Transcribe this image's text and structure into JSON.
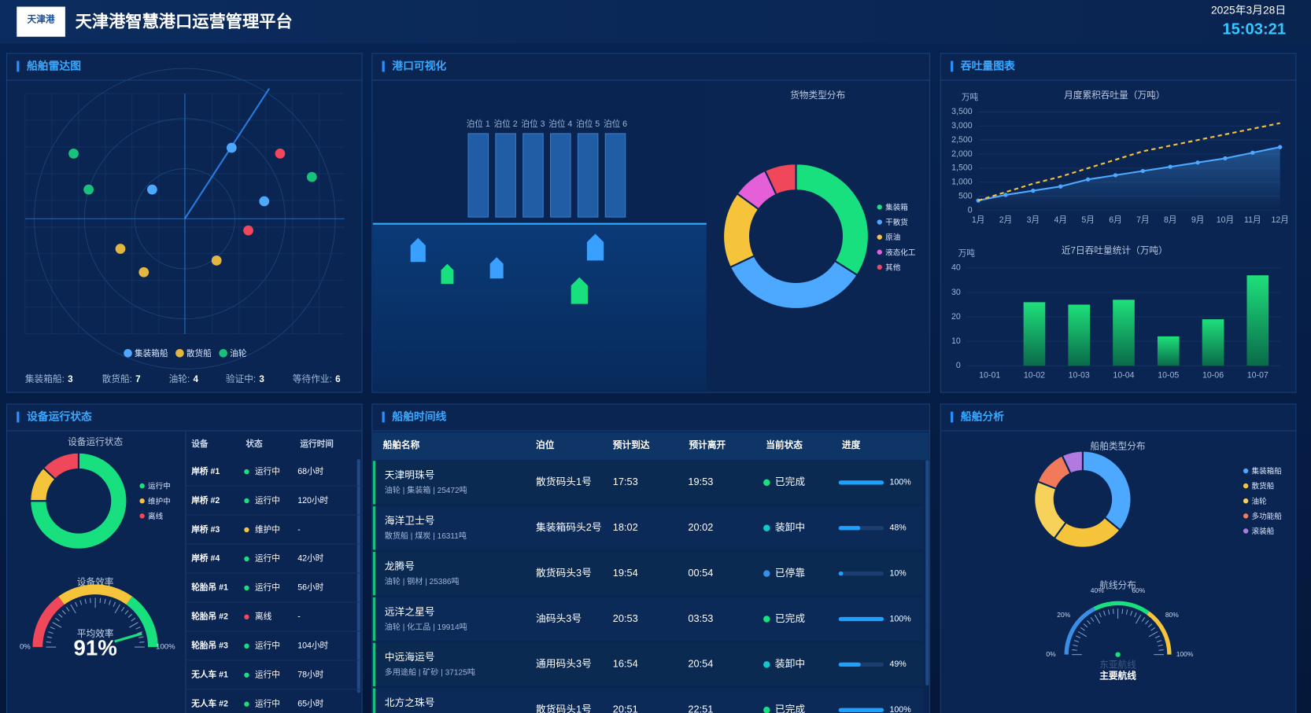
{
  "header": {
    "logo_text": "天津港",
    "title": "天津港智慧港口运营管理平台",
    "date": "2025年3月28日",
    "time": "15:03:21"
  },
  "radar": {
    "title": "船舶雷达图",
    "legend": [
      {
        "name": "集装箱船",
        "color": "#4da8ff"
      },
      {
        "name": "散货船",
        "color": "#e2b640"
      },
      {
        "name": "油轮",
        "color": "#19c27a"
      }
    ],
    "stats": [
      {
        "label": "集装箱船:",
        "value": 3
      },
      {
        "label": "散货船:",
        "value": 7
      },
      {
        "label": "油轮:",
        "value": 4
      },
      {
        "label": "验证中:",
        "value": 3
      },
      {
        "label": "等待作业:",
        "value": 6
      }
    ]
  },
  "port": {
    "title": "港口可视化",
    "berths": [
      "泊位 1",
      "泊位 2",
      "泊位 3",
      "泊位 4",
      "泊位 5",
      "泊位 6"
    ],
    "cargo_chart": {
      "type": "donut",
      "title": "货物类型分布",
      "categories": [
        "集装箱",
        "干散货",
        "原油",
        "液态化工",
        "其他"
      ],
      "values": [
        34,
        34,
        17,
        8,
        7
      ],
      "colors": [
        "#19e07f",
        "#4da8ff",
        "#f5c43a",
        "#e45fd8",
        "#f0475a"
      ]
    }
  },
  "throughput": {
    "title": "吞吐量图表",
    "line_chart": {
      "type": "line",
      "title": "月度累积吞吐量（万吨）",
      "y_unit": "万吨",
      "categories": [
        "1月",
        "2月",
        "3月",
        "4月",
        "5月",
        "6月",
        "7月",
        "8月",
        "9月",
        "10月",
        "11月",
        "12月"
      ],
      "series": [
        {
          "color": "#4da8ff",
          "style": "solid",
          "values": [
            350,
            550,
            700,
            850,
            1100,
            1250,
            1400,
            1550,
            1700,
            1850,
            2050,
            2250
          ]
        },
        {
          "color": "#f5c43a",
          "style": "dashed",
          "values": [
            350,
            650,
            950,
            1200,
            1500,
            1800,
            2100,
            2300,
            2500,
            2700,
            2900,
            3100
          ]
        }
      ],
      "ylim": [
        0,
        3500
      ],
      "yticks": [
        0,
        500,
        {
          "value": 1000,
          "label": "1,000"
        },
        {
          "value": 1500,
          "label": "1,500"
        },
        {
          "value": 2000,
          "label": "2,000"
        },
        {
          "value": 2500,
          "label": "2,500"
        },
        {
          "value": 3000,
          "label": "3,000"
        },
        {
          "value": 3500,
          "label": "3,500"
        }
      ],
      "grid": true
    },
    "bar_chart": {
      "type": "bar",
      "title": "近7日吞吐量统计（万吨）",
      "y_unit": "万吨",
      "categories": [
        "10-01",
        "10-02",
        "10-03",
        "10-04",
        "10-05",
        "10-06",
        "10-07"
      ],
      "values": [
        0,
        26,
        25,
        27,
        12,
        19,
        37
      ],
      "color": "#1ee07a",
      "ylim": [
        0,
        40
      ],
      "yticks": [
        0,
        10,
        20,
        30,
        40
      ],
      "grid": true
    }
  },
  "equipment": {
    "title": "设备运行状态",
    "status_chart": {
      "type": "donut",
      "title": "设备运行状态",
      "categories": [
        "运行中",
        "维护中",
        "离线"
      ],
      "values": [
        75,
        12,
        13
      ],
      "colors": [
        "#19e07f",
        "#f5c43a",
        "#f0475a"
      ]
    },
    "efficiency_gauge": {
      "type": "gauge",
      "title": "设备效率",
      "label": "平均效率",
      "value": 91,
      "value_label": "91%",
      "ylim": [
        0,
        100
      ],
      "yticks": [
        {
          "value": 0,
          "label": "0%"
        },
        {
          "value": 100,
          "label": "100%"
        }
      ]
    },
    "table": {
      "headers": [
        "设备",
        "状态",
        "运行时间"
      ],
      "rows": [
        [
          "岸桥 #1",
          "运行中",
          "68小时"
        ],
        [
          "岸桥 #2",
          "运行中",
          "120小时"
        ],
        [
          "岸桥 #3",
          "维护中",
          "-"
        ],
        [
          "岸桥 #4",
          "运行中",
          "42小时"
        ],
        [
          "轮胎吊 #1",
          "运行中",
          "56小时"
        ],
        [
          "轮胎吊 #2",
          "离线",
          "-"
        ],
        [
          "轮胎吊 #3",
          "运行中",
          "104小时"
        ],
        [
          "无人车 #1",
          "运行中",
          "78小时"
        ],
        [
          "无人车 #2",
          "运行中",
          "65小时"
        ]
      ]
    }
  },
  "timeline": {
    "title": "船舶时间线",
    "headers": [
      "船舶名称",
      "泊位",
      "预计到达",
      "预计离开",
      "当前状态",
      "进度"
    ],
    "progress_range": [
      0,
      100
    ],
    "rows": [
      {
        "name": "天津明珠号",
        "detail": "油轮 | 集装箱 | 25472吨",
        "berth": "散货码头1号",
        "arrive": "17:53",
        "depart": "19:53",
        "status": "已完成",
        "status_color": "#19e07f",
        "progress": {
          "value": 100,
          "label": "100%"
        }
      },
      {
        "name": "海洋卫士号",
        "detail": "散货船 | 煤炭 | 16311吨",
        "berth": "集装箱码头2号",
        "arrive": "18:02",
        "depart": "20:02",
        "status": "装卸中",
        "status_color": "#14c8c8",
        "progress": {
          "value": 48,
          "label": "48%"
        }
      },
      {
        "name": "龙腾号",
        "detail": "油轮 | 钢材 | 25386吨",
        "berth": "散货码头3号",
        "arrive": "19:54",
        "depart": "00:54",
        "status": "已停靠",
        "status_color": "#3a8ee6",
        "progress": {
          "value": 10,
          "label": "10%"
        }
      },
      {
        "name": "远洋之星号",
        "detail": "油轮 | 化工品 | 19914吨",
        "berth": "油码头3号",
        "arrive": "20:53",
        "depart": "03:53",
        "status": "已完成",
        "status_color": "#19e07f",
        "progress": {
          "value": 100,
          "label": "100%"
        }
      },
      {
        "name": "中远海运号",
        "detail": "多用途船 | 矿砂 | 37125吨",
        "berth": "通用码头3号",
        "arrive": "16:54",
        "depart": "20:54",
        "status": "装卸中",
        "status_color": "#14c8c8",
        "progress": {
          "value": 49,
          "label": "49%"
        }
      },
      {
        "name": "北方之珠号",
        "berth": "散货码头1号",
        "arrive": "20:51",
        "depart": "22:51",
        "status": "已完成",
        "status_color": "#19e07f",
        "progress": {
          "value": 100,
          "label": "100%"
        }
      }
    ]
  },
  "ship_analysis": {
    "title": "船舶分析",
    "type_chart": {
      "type": "donut",
      "title": "船舶类型分布",
      "categories": [
        "集装箱船",
        "散货船",
        "油轮",
        "多功能船",
        "滚装船"
      ],
      "values": [
        36,
        24,
        21,
        12,
        7
      ],
      "colors": [
        "#4da8ff",
        "#f5c43a",
        "#f7d25a",
        "#f07a5a",
        "#b07ae0"
      ]
    },
    "route_gauge": {
      "type": "gauge",
      "title": "航线分布",
      "route": "东亚航线",
      "label": "主要航线",
      "ylim": [
        0,
        100
      ],
      "yticks": [
        {
          "value": 0,
          "label": "0%"
        },
        {
          "value": 20,
          "label": "20%"
        },
        {
          "value": 40,
          "label": "40%"
        },
        {
          "value": 60,
          "label": "60%"
        },
        {
          "value": 80,
          "label": "80%"
        },
        {
          "value": 100,
          "label": "100%"
        }
      ]
    }
  }
}
